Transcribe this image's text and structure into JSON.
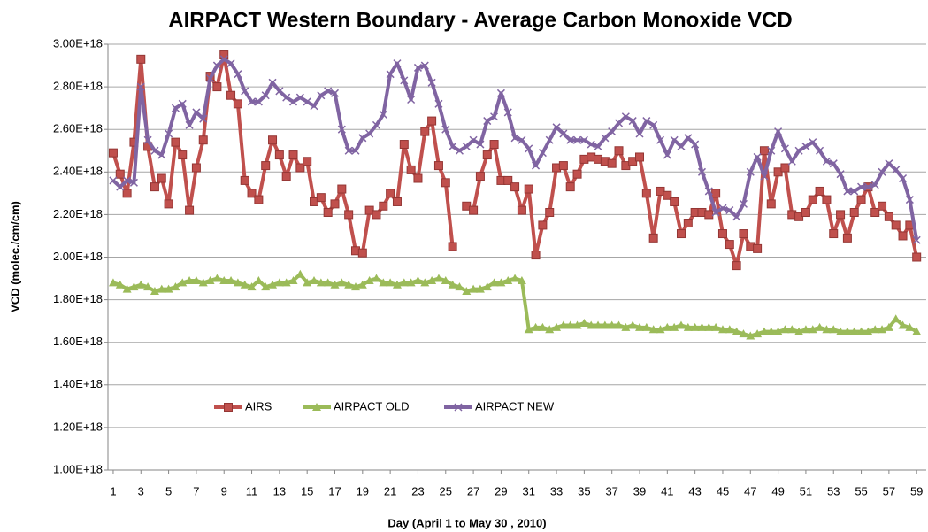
{
  "chart_data": {
    "type": "line",
    "title": "AIRPACT Western Boundary - Average Carbon Monoxide  VCD",
    "ylabel": "VCD (molec./cm/cm)",
    "xlabel": "Day (April 1 to May 30 , 2010)",
    "x": [
      1,
      1.5,
      2,
      2.5,
      3,
      3.5,
      4,
      4.5,
      5,
      5.5,
      6,
      6.5,
      7,
      7.5,
      8,
      8.5,
      9,
      9.5,
      10,
      10.5,
      11,
      11.5,
      12,
      12.5,
      13,
      13.5,
      14,
      14.5,
      15,
      15.5,
      16,
      16.5,
      17,
      17.5,
      18,
      18.5,
      19,
      19.5,
      20,
      20.5,
      21,
      21.5,
      22,
      22.5,
      23,
      23.5,
      24,
      24.5,
      25,
      25.5,
      26,
      26.5,
      27,
      27.5,
      28,
      28.5,
      29,
      29.5,
      30,
      30.5,
      31,
      31.5,
      32,
      32.5,
      33,
      33.5,
      34,
      34.5,
      35,
      35.5,
      36,
      36.5,
      37,
      37.5,
      38,
      38.5,
      39,
      39.5,
      40,
      40.5,
      41,
      41.5,
      42,
      42.5,
      43,
      43.5,
      44,
      44.5,
      45,
      45.5,
      46,
      46.5,
      47,
      47.5,
      48,
      48.5,
      49,
      49.5,
      50,
      50.5,
      51,
      51.5,
      52,
      52.5,
      53,
      53.5,
      54,
      54.5,
      55,
      55.5,
      56,
      56.5,
      57,
      57.5,
      58,
      58.5,
      59
    ],
    "series": [
      {
        "name": "AIRS",
        "color": "#c0504d",
        "marker": "square",
        "values": [
          2.49e+18,
          2.39e+18,
          2.3e+18,
          2.54e+18,
          2.93e+18,
          2.52e+18,
          2.33e+18,
          2.37e+18,
          2.25e+18,
          2.54e+18,
          2.48e+18,
          2.22e+18,
          2.42e+18,
          2.55e+18,
          2.85e+18,
          2.8e+18,
          2.95e+18,
          2.76e+18,
          2.72e+18,
          2.36e+18,
          2.3e+18,
          2.27e+18,
          2.43e+18,
          2.55e+18,
          2.48e+18,
          2.38e+18,
          2.48e+18,
          2.42e+18,
          2.45e+18,
          2.26e+18,
          2.28e+18,
          2.21e+18,
          2.25e+18,
          2.32e+18,
          2.2e+18,
          2.03e+18,
          2.02e+18,
          2.22e+18,
          2.2e+18,
          2.24e+18,
          2.3e+18,
          2.26e+18,
          2.53e+18,
          2.41e+18,
          2.37e+18,
          2.59e+18,
          2.64e+18,
          2.43e+18,
          2.35e+18,
          2.05e+18,
          null,
          2.24e+18,
          2.22e+18,
          2.38e+18,
          2.48e+18,
          2.53e+18,
          2.36e+18,
          2.36e+18,
          2.33e+18,
          2.22e+18,
          2.32e+18,
          2.01e+18,
          2.15e+18,
          2.21e+18,
          2.42e+18,
          2.43e+18,
          2.33e+18,
          2.39e+18,
          2.46e+18,
          2.47e+18,
          2.46e+18,
          2.45e+18,
          2.44e+18,
          2.5e+18,
          2.43e+18,
          2.45e+18,
          2.47e+18,
          2.3e+18,
          2.09e+18,
          2.31e+18,
          2.29e+18,
          2.26e+18,
          2.11e+18,
          2.16e+18,
          2.21e+18,
          2.21e+18,
          2.2e+18,
          2.3e+18,
          2.11e+18,
          2.06e+18,
          1.96e+18,
          2.11e+18,
          2.05e+18,
          2.04e+18,
          2.5e+18,
          2.25e+18,
          2.4e+18,
          2.42e+18,
          2.2e+18,
          2.19e+18,
          2.21e+18,
          2.27e+18,
          2.31e+18,
          2.27e+18,
          2.11e+18,
          2.2e+18,
          2.09e+18,
          2.21e+18,
          2.27e+18,
          2.33e+18,
          2.21e+18,
          2.24e+18,
          2.19e+18,
          2.15e+18,
          2.1e+18,
          2.15e+18,
          2e+18
        ]
      },
      {
        "name": "AIRPACT OLD",
        "color": "#9bbb59",
        "marker": "triangle",
        "values": [
          1.88e+18,
          1.87e+18,
          1.85e+18,
          1.86e+18,
          1.87e+18,
          1.86e+18,
          1.84e+18,
          1.85e+18,
          1.85e+18,
          1.86e+18,
          1.88e+18,
          1.89e+18,
          1.89e+18,
          1.88e+18,
          1.89e+18,
          1.9e+18,
          1.89e+18,
          1.89e+18,
          1.88e+18,
          1.87e+18,
          1.86e+18,
          1.89e+18,
          1.86e+18,
          1.87e+18,
          1.88e+18,
          1.88e+18,
          1.89e+18,
          1.92e+18,
          1.88e+18,
          1.89e+18,
          1.88e+18,
          1.88e+18,
          1.87e+18,
          1.88e+18,
          1.87e+18,
          1.86e+18,
          1.87e+18,
          1.89e+18,
          1.9e+18,
          1.88e+18,
          1.88e+18,
          1.87e+18,
          1.88e+18,
          1.88e+18,
          1.89e+18,
          1.88e+18,
          1.89e+18,
          1.9e+18,
          1.89e+18,
          1.87e+18,
          1.86e+18,
          1.84e+18,
          1.85e+18,
          1.85e+18,
          1.86e+18,
          1.88e+18,
          1.88e+18,
          1.89e+18,
          1.9e+18,
          1.89e+18,
          1.66e+18,
          1.67e+18,
          1.67e+18,
          1.66e+18,
          1.67e+18,
          1.68e+18,
          1.68e+18,
          1.68e+18,
          1.69e+18,
          1.68e+18,
          1.68e+18,
          1.68e+18,
          1.68e+18,
          1.68e+18,
          1.67e+18,
          1.68e+18,
          1.67e+18,
          1.67e+18,
          1.66e+18,
          1.66e+18,
          1.67e+18,
          1.67e+18,
          1.68e+18,
          1.67e+18,
          1.67e+18,
          1.67e+18,
          1.67e+18,
          1.67e+18,
          1.66e+18,
          1.66e+18,
          1.65e+18,
          1.64e+18,
          1.63e+18,
          1.64e+18,
          1.65e+18,
          1.65e+18,
          1.65e+18,
          1.66e+18,
          1.66e+18,
          1.65e+18,
          1.66e+18,
          1.66e+18,
          1.67e+18,
          1.66e+18,
          1.66e+18,
          1.65e+18,
          1.65e+18,
          1.65e+18,
          1.65e+18,
          1.65e+18,
          1.66e+18,
          1.66e+18,
          1.67e+18,
          1.71e+18,
          1.68e+18,
          1.67e+18,
          1.65e+18
        ]
      },
      {
        "name": "AIRPACT NEW",
        "color": "#8064a2",
        "marker": "x",
        "values": [
          2.36e+18,
          2.33e+18,
          2.36e+18,
          2.35e+18,
          2.8e+18,
          2.55e+18,
          2.5e+18,
          2.48e+18,
          2.58e+18,
          2.7e+18,
          2.72e+18,
          2.62e+18,
          2.68e+18,
          2.65e+18,
          2.84e+18,
          2.9e+18,
          2.93e+18,
          2.91e+18,
          2.86e+18,
          2.78e+18,
          2.73e+18,
          2.73e+18,
          2.76e+18,
          2.82e+18,
          2.78e+18,
          2.75e+18,
          2.73e+18,
          2.75e+18,
          2.73e+18,
          2.71e+18,
          2.76e+18,
          2.78e+18,
          2.77e+18,
          2.6e+18,
          2.5e+18,
          2.5e+18,
          2.56e+18,
          2.58e+18,
          2.62e+18,
          2.67e+18,
          2.86e+18,
          2.91e+18,
          2.83e+18,
          2.74e+18,
          2.89e+18,
          2.9e+18,
          2.82e+18,
          2.72e+18,
          2.6e+18,
          2.52e+18,
          2.5e+18,
          2.52e+18,
          2.55e+18,
          2.53e+18,
          2.64e+18,
          2.66e+18,
          2.77e+18,
          2.68e+18,
          2.56e+18,
          2.55e+18,
          2.51e+18,
          2.43e+18,
          2.49e+18,
          2.55e+18,
          2.61e+18,
          2.58e+18,
          2.55e+18,
          2.55e+18,
          2.55e+18,
          2.53e+18,
          2.52e+18,
          2.56e+18,
          2.59e+18,
          2.63e+18,
          2.66e+18,
          2.64e+18,
          2.58e+18,
          2.64e+18,
          2.62e+18,
          2.55e+18,
          2.48e+18,
          2.55e+18,
          2.52e+18,
          2.56e+18,
          2.53e+18,
          2.4e+18,
          2.31e+18,
          2.21e+18,
          2.23e+18,
          2.22e+18,
          2.19e+18,
          2.25e+18,
          2.4e+18,
          2.47e+18,
          2.38e+18,
          2.5e+18,
          2.59e+18,
          2.51e+18,
          2.45e+18,
          2.5e+18,
          2.52e+18,
          2.54e+18,
          2.5e+18,
          2.45e+18,
          2.44e+18,
          2.39e+18,
          2.31e+18,
          2.31e+18,
          2.33e+18,
          2.33e+18,
          2.34e+18,
          2.4e+18,
          2.44e+18,
          2.41e+18,
          2.37e+18,
          2.27e+18,
          2.08e+18
        ]
      }
    ],
    "xlim": [
      0.62,
      59.69
    ],
    "xticks": [
      1,
      3,
      5,
      7,
      9,
      11,
      13,
      15,
      17,
      19,
      21,
      23,
      25,
      27,
      29,
      31,
      33,
      35,
      37,
      39,
      41,
      43,
      45,
      47,
      49,
      51,
      53,
      55,
      57,
      59
    ],
    "ylim": [
      1e+18,
      3e+18
    ],
    "yticks": [
      {
        "value": 1e+18,
        "label": "1.00E+18"
      },
      {
        "value": 1.2e+18,
        "label": "1.20E+18"
      },
      {
        "value": 1.4e+18,
        "label": "1.40E+18"
      },
      {
        "value": 1.6e+18,
        "label": "1.60E+18"
      },
      {
        "value": 1.8e+18,
        "label": "1.80E+18"
      },
      {
        "value": 2e+18,
        "label": "2.00E+18"
      },
      {
        "value": 2.2e+18,
        "label": "2.20E+18"
      },
      {
        "value": 2.4e+18,
        "label": "2.40E+18"
      },
      {
        "value": 2.6e+18,
        "label": "2.60E+18"
      },
      {
        "value": 2.8e+18,
        "label": "2.80E+18"
      },
      {
        "value": 3e+18,
        "label": "3.00E+18"
      }
    ],
    "grid": true,
    "legend": "bottom-left"
  }
}
